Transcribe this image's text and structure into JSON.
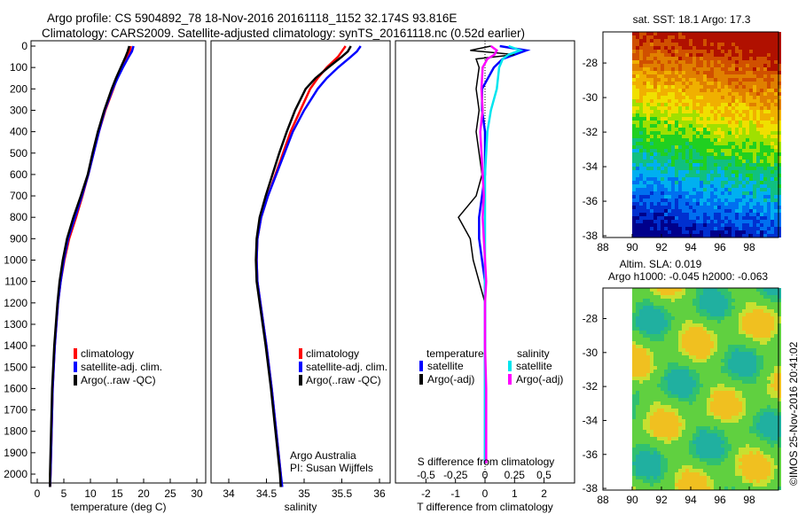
{
  "title_line1": "Argo profile: CS 5904892_78 18-Nov-2016 20161118_1152 32.174S 93.816E",
  "title_line2": "Climatology: CARS2009. Satellite-adjusted climatology: synTS_20161118.nc (0.52d earlier)",
  "colors": {
    "clim": "#ff0000",
    "sat": "#0000ff",
    "argo": "#000000",
    "sat_s": "#00e5ee",
    "argo_s": "#ff00ff"
  },
  "chart_data": [
    {
      "type": "line",
      "name": "temperature",
      "xlabel": "temperature (deg C)",
      "xlim": [
        -0.5,
        31
      ],
      "ylim": [
        2060,
        0
      ],
      "xticks": [
        0,
        5,
        10,
        15,
        20,
        25,
        30
      ],
      "yticks": [
        0,
        100,
        200,
        300,
        400,
        500,
        600,
        700,
        800,
        900,
        1000,
        1100,
        1200,
        1300,
        1400,
        1500,
        1600,
        1700,
        1800,
        1900,
        2000
      ],
      "legend": [
        "climatology",
        "satellite-adj. clim.",
        "Argo(..raw -QC)"
      ],
      "depth": [
        0,
        25,
        50,
        100,
        150,
        200,
        300,
        400,
        500,
        600,
        700,
        800,
        900,
        1000,
        1100,
        1200,
        1400,
        1600,
        1800,
        2000,
        2060
      ],
      "series": [
        {
          "name": "climatology",
          "values": [
            17.6,
            17.4,
            16.9,
            15.9,
            15.0,
            14.3,
            12.8,
            11.6,
            10.6,
            9.6,
            8.5,
            7.3,
            6.0,
            5.1,
            4.4,
            3.9,
            3.3,
            2.9,
            2.7,
            2.5,
            2.4
          ]
        },
        {
          "name": "satellite-adj. clim.",
          "values": [
            18.1,
            17.8,
            17.2,
            16.1,
            15.1,
            14.2,
            12.7,
            11.6,
            10.6,
            9.6,
            8.4,
            7.1,
            5.8,
            5.0,
            4.4,
            3.9,
            3.3,
            2.9,
            2.7,
            2.5,
            2.4
          ]
        },
        {
          "name": "Argo(..raw -QC)",
          "values": [
            17.3,
            17.0,
            16.6,
            15.7,
            14.8,
            14.0,
            12.6,
            11.4,
            10.4,
            9.5,
            8.2,
            6.8,
            5.6,
            4.8,
            4.2,
            3.8,
            3.2,
            2.8,
            2.6,
            2.4,
            2.4
          ]
        }
      ]
    },
    {
      "type": "line",
      "name": "salinity",
      "xlabel": "salinity",
      "xlim": [
        33.7,
        36.05
      ],
      "ylim": [
        2060,
        0
      ],
      "xticks": [
        34,
        34.5,
        35,
        35.5,
        36
      ],
      "legend": [
        "climatology",
        "satellite-adj. clim.",
        "Argo(..raw -QC)"
      ],
      "annotation": [
        "Argo Australia",
        "PI: Susan Wijffels"
      ],
      "depth": [
        0,
        25,
        50,
        100,
        150,
        200,
        300,
        400,
        500,
        600,
        700,
        800,
        900,
        1000,
        1100,
        1200,
        1400,
        1600,
        1800,
        2000,
        2060
      ],
      "series": [
        {
          "name": "climatology",
          "values": [
            35.55,
            35.5,
            35.45,
            35.3,
            35.18,
            35.08,
            34.95,
            34.82,
            34.72,
            34.62,
            34.52,
            34.43,
            34.38,
            34.37,
            34.38,
            34.42,
            34.5,
            34.57,
            34.63,
            34.69,
            34.7
          ]
        },
        {
          "name": "satellite-adj. clim.",
          "values": [
            35.75,
            35.7,
            35.62,
            35.45,
            35.3,
            35.18,
            35.0,
            34.85,
            34.74,
            34.63,
            34.52,
            34.43,
            34.38,
            34.37,
            34.38,
            34.42,
            34.5,
            34.57,
            34.63,
            34.69,
            34.71
          ]
        },
        {
          "name": "Argo(..raw -QC)",
          "values": [
            35.62,
            35.58,
            35.5,
            35.32,
            35.15,
            35.02,
            34.88,
            34.77,
            34.67,
            34.58,
            34.49,
            34.41,
            34.37,
            34.36,
            34.37,
            34.41,
            34.49,
            34.56,
            34.62,
            34.68,
            34.69
          ]
        }
      ]
    },
    {
      "type": "line",
      "name": "differences",
      "xlabel": "T difference from climatology",
      "x2label": "S difference from climatology",
      "xlim": [
        -3,
        3
      ],
      "ylim": [
        2060,
        0
      ],
      "xticks": [
        -2,
        -1,
        0,
        1,
        2
      ],
      "x2ticks": [
        "-0.5",
        "-0.25",
        "0",
        "0.25",
        "0.5"
      ],
      "legend_headers": [
        "temperature",
        "salinity"
      ],
      "legend": [
        "satellite",
        "Argo(-adj)",
        "satellite",
        "Argo(-adj)"
      ],
      "depth": [
        0,
        20,
        40,
        60,
        100,
        200,
        300,
        400,
        500,
        600,
        700,
        800,
        900,
        1000,
        1100,
        1200,
        1400,
        1600,
        1800,
        1950
      ],
      "series": [
        {
          "name": "T satellite",
          "values": [
            0.5,
            1.4,
            1.0,
            0.6,
            0.3,
            -0.1,
            -0.1,
            0,
            0,
            0,
            -0.1,
            -0.2,
            -0.2,
            -0.1,
            0,
            0,
            0,
            0,
            0,
            0
          ]
        },
        {
          "name": "T Argo(-adj)",
          "values": [
            0.2,
            -0.5,
            1.0,
            -0.3,
            -0.2,
            -0.3,
            -0.2,
            -0.3,
            -0.2,
            -0.1,
            -0.3,
            -0.9,
            -0.5,
            -0.4,
            -0.2,
            0,
            0,
            0,
            0,
            0
          ]
        },
        {
          "name": "S satellite",
          "values": [
            0.2,
            0.3,
            0.2,
            0.15,
            0.12,
            0.1,
            0.05,
            0.02,
            0.01,
            0,
            0,
            0,
            0,
            0,
            0,
            0,
            0,
            0,
            0,
            0
          ]
        },
        {
          "name": "S Argo(-adj)",
          "values": [
            0.05,
            0.1,
            0.08,
            0.02,
            -0.02,
            -0.03,
            -0.02,
            -0.04,
            -0.03,
            -0.02,
            -0.01,
            -0.02,
            -0.01,
            0,
            0.01,
            0,
            0,
            0.01,
            0.01,
            0.01
          ]
        }
      ]
    },
    {
      "type": "heatmap",
      "name": "sst-map",
      "title": "sat. SST: 18.1 Argo: 17.3",
      "xticks": [
        88,
        90,
        92,
        94,
        96,
        98
      ],
      "yticks": [
        -28,
        -30,
        -32,
        -34,
        -36,
        -38
      ],
      "xlim": [
        88,
        100
      ],
      "ylim": [
        -38.1,
        -26.2
      ],
      "land_west_of": 90
    },
    {
      "type": "heatmap",
      "name": "sla-map",
      "title": "Altim. SLA: 0.019",
      "subtitle": "Argo h1000: -0.045 h2000: -0.063",
      "xticks": [
        88,
        90,
        92,
        94,
        96,
        98
      ],
      "yticks": [
        -28,
        -30,
        -32,
        -34,
        -36,
        -38
      ],
      "xlim": [
        88,
        100
      ],
      "ylim": [
        -38.1,
        -26.2
      ],
      "land_west_of": 90
    }
  ],
  "credit": "©IMOS 25-Nov-2016 20:41:02"
}
